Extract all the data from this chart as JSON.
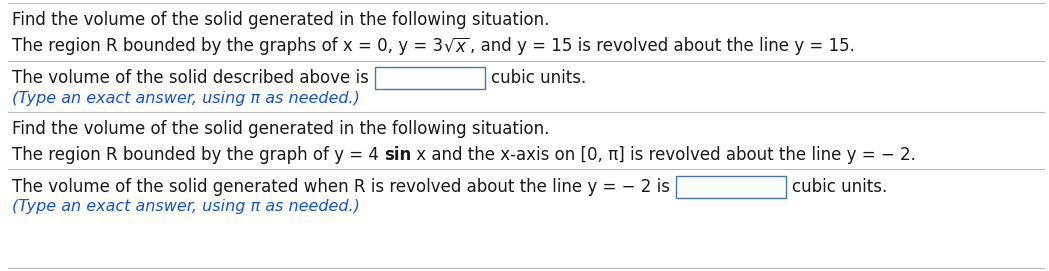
{
  "bg_color": "#ffffff",
  "text_color": "#1a1a1a",
  "blue_color": "#1155CC",
  "gray_line_color": "#bbbbbb",
  "font_size": 12,
  "s1_l1": "Find the volume of the solid generated in the following situation.",
  "s1_l2a": "The region R bounded by the graphs of x = 0, y = 3",
  "s1_l2b": "x",
  "s1_l2c": ", and y = 15 is revolved about the line y = 15.",
  "s1_ans_pre": "The volume of the solid described above is",
  "s1_ans_post": "cubic units.",
  "s1_hint": "(Type an exact answer, using π as needed.)",
  "s2_l1": "Find the volume of the solid generated in the following situation.",
  "s2_l2a": "The region R bounded by the graph of y = 4 ",
  "s2_l2b": "sin",
  "s2_l2c": " x and the x-axis on [0, π] is revolved about the line y = − 2.",
  "s2_ans_pre": "The volume of the solid generated when R is revolved about the line y = − 2 is",
  "s2_ans_post": "cubic units.",
  "s2_hint": "(Type an exact answer, using π as needed.)"
}
